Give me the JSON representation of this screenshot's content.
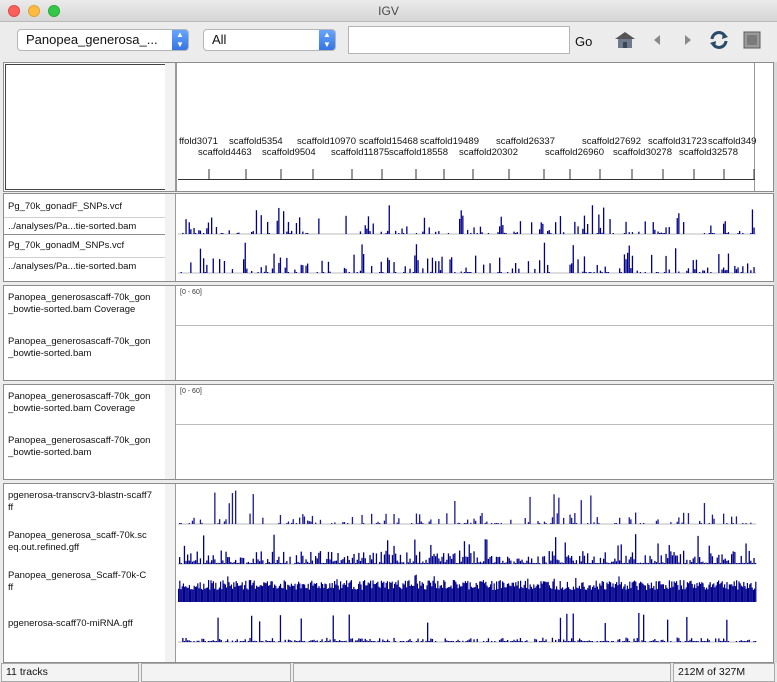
{
  "window": {
    "title": "IGV"
  },
  "toolbar": {
    "genome_select": "Panopea_generosa_...",
    "chromosome_select": "All",
    "locus_value": "",
    "go_label": "Go",
    "icons": [
      "home-icon",
      "back-arrow-icon",
      "forward-arrow-icon",
      "refresh-icon",
      "region-of-interest-icon"
    ]
  },
  "ruler": {
    "upper_labels": [
      "ffold3071",
      "scaffold5354",
      "scaffold10970",
      "scaffold15468",
      "scaffold19489",
      "scaffold26337",
      "scaffold27692",
      "scaffold31723",
      "scaffold349"
    ],
    "lower_labels": [
      "scaffold4463",
      "scaffold9504",
      "scaffold11875",
      "scaffold18558",
      "scaffold20302",
      "scaffold26960",
      "scaffold30278",
      "scaffold32578"
    ]
  },
  "panels": {
    "snp": {
      "tracks": [
        {
          "name": "Pg_70k_gonadF_SNPs.vcf"
        },
        {
          "name": "../analyses/Pa...tie-sorted.bam"
        },
        {
          "name": "Pg_70k_gonadM_SNPs.vcf"
        },
        {
          "name": "../analyses/Pa...tie-sorted.bam"
        }
      ]
    },
    "bam1": {
      "range": "[0 - 60]",
      "tracks": [
        {
          "line1": "Panopea_generosascaff-70k_gon",
          "line2": "_bowtie-sorted.bam Coverage"
        },
        {
          "line1": "Panopea_generosascaff-70k_gon",
          "line2": "_bowtie-sorted.bam"
        }
      ]
    },
    "bam2": {
      "range": "[0 - 60]",
      "tracks": [
        {
          "line1": "Panopea_generosascaff-70k_gon",
          "line2": "_bowtie-sorted.bam Coverage"
        },
        {
          "line1": "Panopea_generosascaff-70k_gon",
          "line2": "_bowtie-sorted.bam"
        }
      ]
    },
    "features": {
      "tracks": [
        {
          "line1": "pgenerosa-transcrv3-blastn-scaff7",
          "line2": "ff"
        },
        {
          "line1": "Panopea_generosa_scaff-70k.sc",
          "line2": "eq.out.refined.gff"
        },
        {
          "line1": "Panopea_generosa_Scaff-70k-C",
          "line2": "ff"
        },
        {
          "line1": "pgenerosa-scaff70-miRNA.gff",
          "line2": ""
        }
      ]
    }
  },
  "status": {
    "tracks": "11 tracks",
    "memory": "212M of 327M"
  },
  "colors": {
    "track_blue": "#00008b",
    "track_navy": "#1a1a99"
  }
}
